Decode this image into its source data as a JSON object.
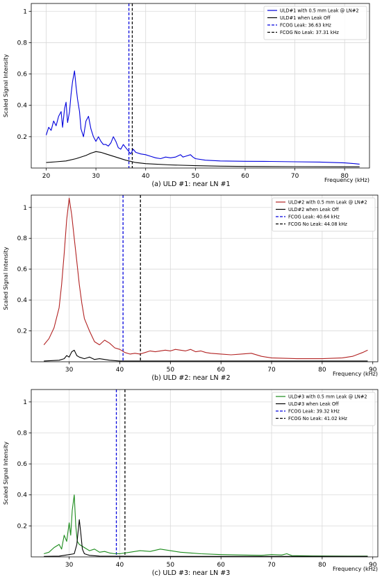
{
  "chart_data": [
    {
      "type": "line",
      "caption": "(a) ULD #1: near LN #1",
      "xlabel": "Frequency (kHz)",
      "ylabel": "Scaled Signal Intensity",
      "xlim": [
        17,
        85
      ],
      "ylim": [
        0,
        1.05
      ],
      "xticks": [
        20,
        30,
        40,
        50,
        60,
        70,
        80
      ],
      "yticks": [
        0.2,
        0.4,
        0.6,
        0.8,
        1.0
      ],
      "grid": true,
      "legend_position": "top-right",
      "series": [
        {
          "name": "ULD#1 with 0.5 mm Leak @ LN#2",
          "color": "#0000dd",
          "points": [
            [
              20,
              0.21
            ],
            [
              20.5,
              0.26
            ],
            [
              21,
              0.24
            ],
            [
              21.5,
              0.3
            ],
            [
              22,
              0.27
            ],
            [
              22.5,
              0.33
            ],
            [
              23,
              0.36
            ],
            [
              23.3,
              0.26
            ],
            [
              23.7,
              0.38
            ],
            [
              24,
              0.42
            ],
            [
              24.3,
              0.29
            ],
            [
              24.7,
              0.36
            ],
            [
              25,
              0.47
            ],
            [
              25.3,
              0.55
            ],
            [
              25.7,
              0.62
            ],
            [
              26,
              0.52
            ],
            [
              26.3,
              0.44
            ],
            [
              26.7,
              0.36
            ],
            [
              27,
              0.25
            ],
            [
              27.5,
              0.2
            ],
            [
              28,
              0.3
            ],
            [
              28.5,
              0.33
            ],
            [
              29,
              0.25
            ],
            [
              29.5,
              0.2
            ],
            [
              30,
              0.17
            ],
            [
              30.5,
              0.2
            ],
            [
              31,
              0.17
            ],
            [
              31.5,
              0.15
            ],
            [
              32,
              0.15
            ],
            [
              32.5,
              0.14
            ],
            [
              33,
              0.16
            ],
            [
              33.5,
              0.2
            ],
            [
              34,
              0.17
            ],
            [
              34.5,
              0.13
            ],
            [
              35,
              0.12
            ],
            [
              35.5,
              0.15
            ],
            [
              36,
              0.13
            ],
            [
              37,
              0.09
            ],
            [
              37.5,
              0.12
            ],
            [
              38,
              0.1
            ],
            [
              39,
              0.09
            ],
            [
              40,
              0.085
            ],
            [
              41,
              0.075
            ],
            [
              42,
              0.065
            ],
            [
              43,
              0.06
            ],
            [
              44,
              0.07
            ],
            [
              45,
              0.065
            ],
            [
              46,
              0.07
            ],
            [
              47,
              0.085
            ],
            [
              47.5,
              0.07
            ],
            [
              48,
              0.075
            ],
            [
              49,
              0.085
            ],
            [
              49.5,
              0.07
            ],
            [
              50,
              0.06
            ],
            [
              52,
              0.05
            ],
            [
              55,
              0.045
            ],
            [
              60,
              0.043
            ],
            [
              65,
              0.042
            ],
            [
              70,
              0.04
            ],
            [
              75,
              0.038
            ],
            [
              80,
              0.033
            ],
            [
              82,
              0.028
            ],
            [
              83,
              0.025
            ]
          ]
        },
        {
          "name": "ULD#1 when Leak Off",
          "color": "#000000",
          "points": [
            [
              20,
              0.035
            ],
            [
              22,
              0.04
            ],
            [
              24,
              0.045
            ],
            [
              26,
              0.06
            ],
            [
              28,
              0.08
            ],
            [
              29,
              0.095
            ],
            [
              30,
              0.105
            ],
            [
              31,
              0.1
            ],
            [
              32,
              0.09
            ],
            [
              34,
              0.07
            ],
            [
              36,
              0.05
            ],
            [
              38,
              0.035
            ],
            [
              40,
              0.028
            ],
            [
              45,
              0.02
            ],
            [
              50,
              0.015
            ],
            [
              55,
              0.012
            ],
            [
              60,
              0.01
            ],
            [
              70,
              0.009
            ],
            [
              80,
              0.008
            ],
            [
              83,
              0.008
            ]
          ]
        }
      ],
      "markers": [
        {
          "name": "FCOG Leak: 36.63 kHz",
          "x": 36.63,
          "color": "#0000dd"
        },
        {
          "name": "FCOG No Leak: 37.31 kHz",
          "x": 37.31,
          "color": "#000000"
        }
      ]
    },
    {
      "type": "line",
      "caption": "(b) ULD #2: near LN #2",
      "xlabel": "Frequency (kHz)",
      "ylabel": "Scaled Signal Intensity",
      "xlim": [
        22.5,
        91
      ],
      "ylim": [
        0,
        1.08
      ],
      "xticks": [
        30,
        40,
        50,
        60,
        70,
        80,
        90
      ],
      "yticks": [
        0.2,
        0.4,
        0.6,
        0.8,
        1.0
      ],
      "grid": true,
      "legend_position": "top-right",
      "series": [
        {
          "name": "ULD#2 with 0.5 mm Leak @ LN#2",
          "color": "#b22222",
          "points": [
            [
              25,
              0.11
            ],
            [
              26,
              0.15
            ],
            [
              27,
              0.22
            ],
            [
              28,
              0.35
            ],
            [
              28.5,
              0.5
            ],
            [
              29,
              0.7
            ],
            [
              29.5,
              0.92
            ],
            [
              30,
              1.06
            ],
            [
              30.5,
              0.95
            ],
            [
              31,
              0.8
            ],
            [
              31.5,
              0.65
            ],
            [
              32,
              0.5
            ],
            [
              32.5,
              0.38
            ],
            [
              33,
              0.28
            ],
            [
              34,
              0.2
            ],
            [
              35,
              0.13
            ],
            [
              36,
              0.11
            ],
            [
              37,
              0.14
            ],
            [
              38,
              0.12
            ],
            [
              39,
              0.09
            ],
            [
              40,
              0.08
            ],
            [
              41,
              0.06
            ],
            [
              42,
              0.05
            ],
            [
              43,
              0.055
            ],
            [
              44,
              0.05
            ],
            [
              45,
              0.06
            ],
            [
              46,
              0.07
            ],
            [
              47,
              0.065
            ],
            [
              48,
              0.07
            ],
            [
              49,
              0.075
            ],
            [
              50,
              0.07
            ],
            [
              51,
              0.08
            ],
            [
              52,
              0.075
            ],
            [
              53,
              0.07
            ],
            [
              54,
              0.08
            ],
            [
              55,
              0.065
            ],
            [
              56,
              0.07
            ],
            [
              57,
              0.06
            ],
            [
              58,
              0.055
            ],
            [
              60,
              0.05
            ],
            [
              62,
              0.045
            ],
            [
              64,
              0.05
            ],
            [
              66,
              0.055
            ],
            [
              68,
              0.035
            ],
            [
              70,
              0.025
            ],
            [
              75,
              0.02
            ],
            [
              80,
              0.02
            ],
            [
              84,
              0.025
            ],
            [
              86,
              0.035
            ],
            [
              88,
              0.06
            ],
            [
              89,
              0.075
            ]
          ]
        },
        {
          "name": "ULD#2 when Leak Off",
          "color": "#000000",
          "points": [
            [
              25,
              0.005
            ],
            [
              27,
              0.008
            ],
            [
              28,
              0.01
            ],
            [
              29,
              0.02
            ],
            [
              29.5,
              0.04
            ],
            [
              30,
              0.03
            ],
            [
              30.5,
              0.065
            ],
            [
              31,
              0.075
            ],
            [
              31.5,
              0.04
            ],
            [
              32,
              0.03
            ],
            [
              33,
              0.02
            ],
            [
              34,
              0.03
            ],
            [
              35,
              0.015
            ],
            [
              36,
              0.02
            ],
            [
              38,
              0.01
            ],
            [
              40,
              0.005
            ],
            [
              45,
              0.005
            ],
            [
              50,
              0.005
            ],
            [
              60,
              0.005
            ],
            [
              70,
              0.005
            ],
            [
              80,
              0.005
            ],
            [
              89,
              0.005
            ]
          ]
        }
      ],
      "markers": [
        {
          "name": "FCOG Leak: 40.64 kHz",
          "x": 40.64,
          "color": "#0000dd"
        },
        {
          "name": "FCOG No Leak: 44.08 kHz",
          "x": 44.08,
          "color": "#000000"
        }
      ]
    },
    {
      "type": "line",
      "caption": "(c) ULD #3: near LN #3",
      "xlabel": "Frequency (kHz)",
      "ylabel": "Scaled Signal Intensity",
      "xlim": [
        22.5,
        91
      ],
      "ylim": [
        0,
        1.08
      ],
      "xticks": [
        30,
        40,
        50,
        60,
        70,
        80,
        90
      ],
      "yticks": [
        0.2,
        0.4,
        0.6,
        0.8,
        1.0
      ],
      "grid": true,
      "legend_position": "top-right",
      "series": [
        {
          "name": "ULD#3 with 0.5 mm Leak @ LN#2",
          "color": "#1a8a1a",
          "points": [
            [
              25,
              0.02
            ],
            [
              26,
              0.03
            ],
            [
              27,
              0.06
            ],
            [
              28,
              0.08
            ],
            [
              28.5,
              0.05
            ],
            [
              29,
              0.14
            ],
            [
              29.5,
              0.1
            ],
            [
              30,
              0.22
            ],
            [
              30.3,
              0.14
            ],
            [
              30.6,
              0.3
            ],
            [
              31,
              0.4
            ],
            [
              31.3,
              0.2
            ],
            [
              31.6,
              0.1
            ],
            [
              32,
              0.08
            ],
            [
              33,
              0.06
            ],
            [
              34,
              0.04
            ],
            [
              35,
              0.05
            ],
            [
              36,
              0.03
            ],
            [
              37,
              0.035
            ],
            [
              38,
              0.025
            ],
            [
              39,
              0.02
            ],
            [
              40,
              0.02
            ],
            [
              42,
              0.03
            ],
            [
              44,
              0.04
            ],
            [
              46,
              0.035
            ],
            [
              48,
              0.05
            ],
            [
              50,
              0.04
            ],
            [
              52,
              0.03
            ],
            [
              54,
              0.025
            ],
            [
              56,
              0.02
            ],
            [
              60,
              0.015
            ],
            [
              64,
              0.012
            ],
            [
              68,
              0.01
            ],
            [
              70,
              0.015
            ],
            [
              72,
              0.012
            ],
            [
              73,
              0.02
            ],
            [
              74,
              0.008
            ],
            [
              78,
              0.006
            ],
            [
              85,
              0.005
            ],
            [
              89,
              0.005
            ]
          ]
        },
        {
          "name": "ULD#3 when Leak Off",
          "color": "#000000",
          "points": [
            [
              25,
              0.003
            ],
            [
              28,
              0.005
            ],
            [
              29,
              0.01
            ],
            [
              30,
              0.015
            ],
            [
              31,
              0.02
            ],
            [
              31.5,
              0.08
            ],
            [
              32,
              0.24
            ],
            [
              32.3,
              0.15
            ],
            [
              32.6,
              0.05
            ],
            [
              33,
              0.02
            ],
            [
              34,
              0.01
            ],
            [
              36,
              0.005
            ],
            [
              40,
              0.004
            ],
            [
              50,
              0.003
            ],
            [
              60,
              0.003
            ],
            [
              70,
              0.003
            ],
            [
              80,
              0.003
            ],
            [
              89,
              0.003
            ]
          ]
        }
      ],
      "markers": [
        {
          "name": "FCOG Leak: 39.32 kHz",
          "x": 39.32,
          "color": "#0000dd"
        },
        {
          "name": "FCOG No Leak: 41.02 kHz",
          "x": 41.02,
          "color": "#000000"
        }
      ]
    }
  ]
}
